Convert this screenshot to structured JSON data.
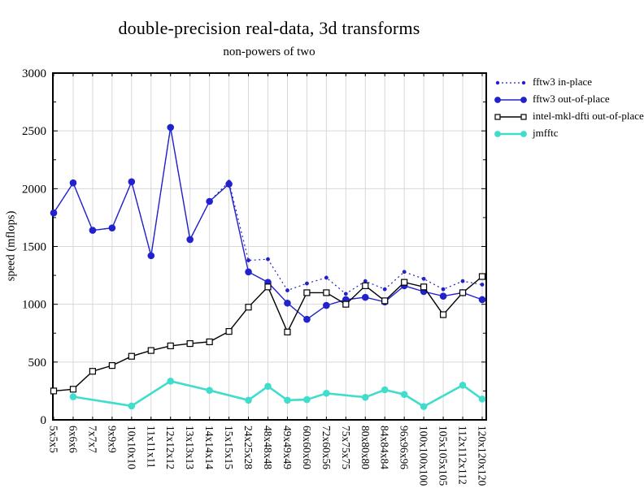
{
  "title": "double-precision real-data, 3d transforms",
  "subtitle": "non-powers of two",
  "ylabel": "speed (mflops)",
  "chart_data": {
    "type": "line",
    "categories": [
      "5x5x5",
      "6x6x6",
      "7x7x7",
      "9x9x9",
      "10x10x10",
      "11x11x11",
      "12x12x12",
      "13x13x13",
      "14x14x14",
      "15x15x15",
      "24x25x28",
      "48x48x48",
      "49x49x49",
      "60x60x60",
      "72x60x56",
      "75x75x75",
      "80x80x80",
      "84x84x84",
      "96x96x96",
      "100x100x100",
      "105x105x105",
      "112x112x112",
      "120x120x120"
    ],
    "ylim": [
      0,
      3000
    ],
    "ytick_step": 500,
    "ytick_minor_step": 250,
    "grid": true,
    "legend_position": "top-right-outside",
    "series": [
      {
        "name": "fftw3 in-place",
        "color": "#2222cc",
        "line": "dotted",
        "marker": "dot-small",
        "values": [
          1790,
          2050,
          1640,
          1660,
          2060,
          1420,
          2530,
          1560,
          1890,
          2060,
          1380,
          1390,
          1120,
          1180,
          1230,
          1090,
          1200,
          1130,
          1280,
          1220,
          1130,
          1200,
          1170
        ]
      },
      {
        "name": "fftw3 out-of-place",
        "color": "#2222cc",
        "line": "solid",
        "marker": "circle",
        "values": [
          1790,
          2050,
          1640,
          1660,
          2060,
          1420,
          2530,
          1560,
          1890,
          2040,
          1280,
          1190,
          1010,
          870,
          990,
          1040,
          1060,
          1020,
          1160,
          1110,
          1070,
          1100,
          1040
        ]
      },
      {
        "name": "intel-mkl-dfti out-of-place",
        "color": "#000000",
        "line": "solid",
        "marker": "square-open",
        "values": [
          250,
          265,
          420,
          470,
          550,
          600,
          640,
          660,
          675,
          765,
          975,
          1150,
          760,
          1100,
          1100,
          1000,
          1160,
          1030,
          1190,
          1150,
          910,
          1100,
          1240
        ]
      },
      {
        "name": "jmfftc",
        "color": "#40ddcc",
        "line": "solid",
        "marker": "circle",
        "values": [
          null,
          200,
          null,
          null,
          120,
          null,
          335,
          null,
          255,
          null,
          170,
          290,
          170,
          175,
          230,
          null,
          195,
          260,
          220,
          115,
          null,
          300,
          180
        ]
      }
    ],
    "colors": {
      "grid": "#d8d8d8",
      "axis": "#000000",
      "background": "#ffffff"
    }
  }
}
